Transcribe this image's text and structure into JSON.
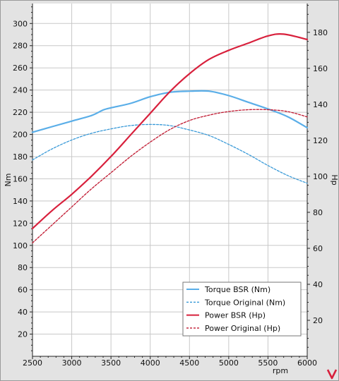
{
  "chart_data": {
    "type": "line",
    "x_unit": "rpm",
    "xlim": [
      2500,
      6000
    ],
    "x_ticks": [
      2500,
      3000,
      3500,
      4000,
      4500,
      5000,
      5500,
      6000
    ],
    "left_axis": {
      "label": "Nm",
      "ylim": [
        0,
        318
      ],
      "ticks": [
        20,
        40,
        60,
        80,
        100,
        120,
        140,
        160,
        180,
        200,
        220,
        240,
        260,
        280,
        300
      ]
    },
    "right_axis": {
      "label": "Hp",
      "ylim": [
        0,
        196
      ],
      "ticks": [
        20,
        40,
        60,
        80,
        100,
        120,
        140,
        160,
        180
      ]
    },
    "grid": true,
    "legend_position": "bottom-right",
    "series": [
      {
        "name": "Torque BSR (Nm)",
        "axis": "left",
        "color": "#5aaee8",
        "style": "solid",
        "x": [
          2500,
          2750,
          3000,
          3250,
          3400,
          3500,
          3750,
          4000,
          4250,
          4500,
          4750,
          5000,
          5250,
          5500,
          5750,
          6000
        ],
        "y": [
          202,
          207,
          212,
          217,
          222,
          224,
          228,
          234,
          238,
          239,
          239,
          235,
          229,
          223,
          216,
          206
        ]
      },
      {
        "name": "Torque Original (Nm)",
        "axis": "left",
        "color": "#3a9ad8",
        "style": "dashed",
        "x": [
          2500,
          2750,
          3000,
          3250,
          3500,
          3750,
          4000,
          4250,
          4500,
          4750,
          5000,
          5250,
          5500,
          5750,
          6000
        ],
        "y": [
          177,
          187,
          195,
          201,
          205,
          208,
          209,
          208,
          204,
          199,
          191,
          182,
          172,
          163,
          156
        ]
      },
      {
        "name": "Power BSR (Hp)",
        "axis": "right",
        "color": "#d8203c",
        "style": "solid",
        "x": [
          2500,
          2750,
          3000,
          3250,
          3500,
          3750,
          4000,
          4250,
          4500,
          4750,
          5000,
          5250,
          5500,
          5700,
          6000
        ],
        "y": [
          71,
          81,
          90,
          100,
          111,
          123,
          135,
          147,
          157,
          165,
          170,
          174,
          178,
          179,
          176
        ]
      },
      {
        "name": "Power Original (Hp)",
        "axis": "right",
        "color": "#c01830",
        "style": "dashed",
        "x": [
          2500,
          2750,
          3000,
          3250,
          3500,
          3750,
          4000,
          4250,
          4500,
          4750,
          5000,
          5250,
          5500,
          5750,
          6000
        ],
        "y": [
          63,
          73,
          83,
          93,
          102,
          111,
          119,
          126,
          131,
          134,
          136,
          137,
          137,
          136,
          133
        ]
      }
    ]
  },
  "brand": {
    "icon": "v-logo-icon",
    "color": "#d8203c"
  }
}
